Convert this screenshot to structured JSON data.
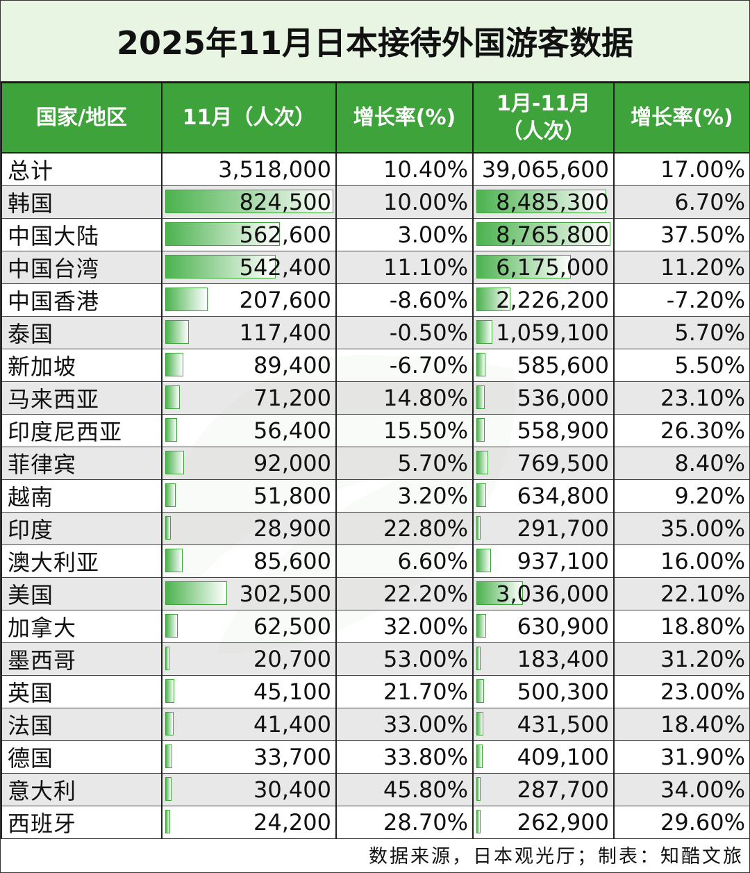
{
  "title": "2025年11月日本接待外国游客数据",
  "headers": {
    "country": "国家/地区",
    "nov": "11月（人次）",
    "nov_growth": "增长率(%)",
    "ytd_line1": "1月-11月",
    "ytd_line2": "（人次）",
    "ytd_growth": "增长率(%)"
  },
  "colors": {
    "header_bg": "#3ea33a",
    "title_bg": "#e9f5e3",
    "bar": "#4cb24f"
  },
  "rows": [
    {
      "name": "总计",
      "nov": "3,518,000",
      "nov_growth": "10.40%",
      "ytd": "39,065,600",
      "ytd_growth": "17.00%",
      "total": true
    },
    {
      "name": "韩国",
      "nov": "824,500",
      "nov_growth": "10.00%",
      "ytd": "8,485,300",
      "ytd_growth": "6.70%"
    },
    {
      "name": "中国大陆",
      "nov": "562,600",
      "nov_growth": "3.00%",
      "ytd": "8,765,800",
      "ytd_growth": "37.50%"
    },
    {
      "name": "中国台湾",
      "nov": "542,400",
      "nov_growth": "11.10%",
      "ytd": "6,175,000",
      "ytd_growth": "11.20%"
    },
    {
      "name": "中国香港",
      "nov": "207,600",
      "nov_growth": "-8.60%",
      "ytd": "2,226,200",
      "ytd_growth": "-7.20%"
    },
    {
      "name": "泰国",
      "nov": "117,400",
      "nov_growth": "-0.50%",
      "ytd": "1,059,100",
      "ytd_growth": "5.70%"
    },
    {
      "name": "新加坡",
      "nov": "89,400",
      "nov_growth": "-6.70%",
      "ytd": "585,600",
      "ytd_growth": "5.50%"
    },
    {
      "name": "马来西亚",
      "nov": "71,200",
      "nov_growth": "14.80%",
      "ytd": "536,000",
      "ytd_growth": "23.10%"
    },
    {
      "name": "印度尼西亚",
      "nov": "56,400",
      "nov_growth": "15.50%",
      "ytd": "558,900",
      "ytd_growth": "26.30%"
    },
    {
      "name": "菲律宾",
      "nov": "92,000",
      "nov_growth": "5.70%",
      "ytd": "769,500",
      "ytd_growth": "8.40%"
    },
    {
      "name": "越南",
      "nov": "51,800",
      "nov_growth": "3.20%",
      "ytd": "634,800",
      "ytd_growth": "9.20%"
    },
    {
      "name": "印度",
      "nov": "28,900",
      "nov_growth": "22.80%",
      "ytd": "291,700",
      "ytd_growth": "35.00%"
    },
    {
      "name": "澳大利亚",
      "nov": "85,600",
      "nov_growth": "6.60%",
      "ytd": "937,100",
      "ytd_growth": "16.00%"
    },
    {
      "name": "美国",
      "nov": "302,500",
      "nov_growth": "22.20%",
      "ytd": "3,036,000",
      "ytd_growth": "22.10%"
    },
    {
      "name": "加拿大",
      "nov": "62,500",
      "nov_growth": "32.00%",
      "ytd": "630,900",
      "ytd_growth": "18.80%"
    },
    {
      "name": "墨西哥",
      "nov": "20,700",
      "nov_growth": "53.00%",
      "ytd": "183,400",
      "ytd_growth": "31.20%"
    },
    {
      "name": "英国",
      "nov": "45,100",
      "nov_growth": "21.70%",
      "ytd": "500,300",
      "ytd_growth": "23.00%"
    },
    {
      "name": "法国",
      "nov": "41,400",
      "nov_growth": "33.00%",
      "ytd": "431,500",
      "ytd_growth": "18.40%"
    },
    {
      "name": "德国",
      "nov": "33,700",
      "nov_growth": "33.80%",
      "ytd": "409,100",
      "ytd_growth": "31.90%"
    },
    {
      "name": "意大利",
      "nov": "30,400",
      "nov_growth": "45.80%",
      "ytd": "287,700",
      "ytd_growth": "34.00%"
    },
    {
      "name": "西班牙",
      "nov": "24,200",
      "nov_growth": "28.70%",
      "ytd": "262,900",
      "ytd_growth": "29.60%"
    }
  ],
  "footer": "数据来源，日本观光厅；制表：知酷文旅"
}
